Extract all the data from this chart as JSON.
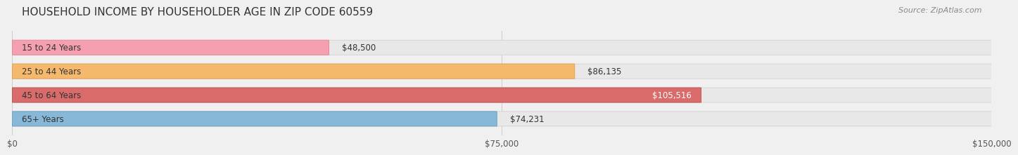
{
  "title": "HOUSEHOLD INCOME BY HOUSEHOLDER AGE IN ZIP CODE 60559",
  "source": "Source: ZipAtlas.com",
  "categories": [
    "15 to 24 Years",
    "25 to 44 Years",
    "45 to 64 Years",
    "65+ Years"
  ],
  "values": [
    48500,
    86135,
    105516,
    74231
  ],
  "bar_colors": [
    "#f4a0b0",
    "#f5b96e",
    "#d96b6b",
    "#88b8d8"
  ],
  "bar_edge_colors": [
    "#e8889a",
    "#e8a050",
    "#c05555",
    "#6ea0c0"
  ],
  "label_colors": [
    "#555555",
    "#555555",
    "#ffffff",
    "#555555"
  ],
  "value_labels": [
    "$48,500",
    "$86,135",
    "$105,516",
    "$74,231"
  ],
  "xlim": [
    0,
    150000
  ],
  "xticks": [
    0,
    75000,
    150000
  ],
  "xticklabels": [
    "$0",
    "$75,000",
    "$150,000"
  ],
  "background_color": "#f0f0f0",
  "bar_background_color": "#e8e8e8",
  "title_fontsize": 11,
  "source_fontsize": 8,
  "label_fontsize": 8.5,
  "value_fontsize": 8.5,
  "tick_fontsize": 8.5
}
